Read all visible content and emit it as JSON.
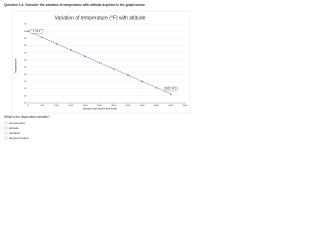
{
  "question": "Question 1.4: Consider the variation of temperature with altitude depicted in the graph below.",
  "chart_data": {
    "type": "line",
    "title": "Variation of temperature (°F) with altitude",
    "x_label": "altitude (feet above sea level)",
    "y_label": "Temperature",
    "x": [
      0,
      500,
      1000,
      1500,
      2000,
      2500,
      3000,
      3500,
      4000,
      4500,
      5000
    ],
    "series": [
      {
        "name": "Temperature",
        "color": "#4a7fc1",
        "values": [
          60,
          58.25,
          56.5,
          54.75,
          53,
          51.25,
          49.5,
          47.75,
          46,
          44.25,
          42.5
        ]
      }
    ],
    "xlim": [
      0,
      5500
    ],
    "xticks": [
      0,
      500,
      1000,
      1500,
      2000,
      2500,
      3000,
      3500,
      4000,
      4500,
      5000,
      5500
    ],
    "ylim": [
      40,
      62
    ],
    "yticks": [
      40,
      42,
      44,
      46,
      48,
      50,
      52,
      54,
      56,
      58,
      60,
      62
    ],
    "grid": true,
    "annotations": [
      {
        "text": "0, 60.0",
        "x": 0,
        "y": 60
      },
      {
        "text": "5000, 42.5",
        "x": 5000,
        "y": 42.5
      }
    ]
  },
  "prompt": "What is the dependent variable?",
  "options": [
    "temperature",
    "altitude",
    "variation",
    "degrees below"
  ]
}
